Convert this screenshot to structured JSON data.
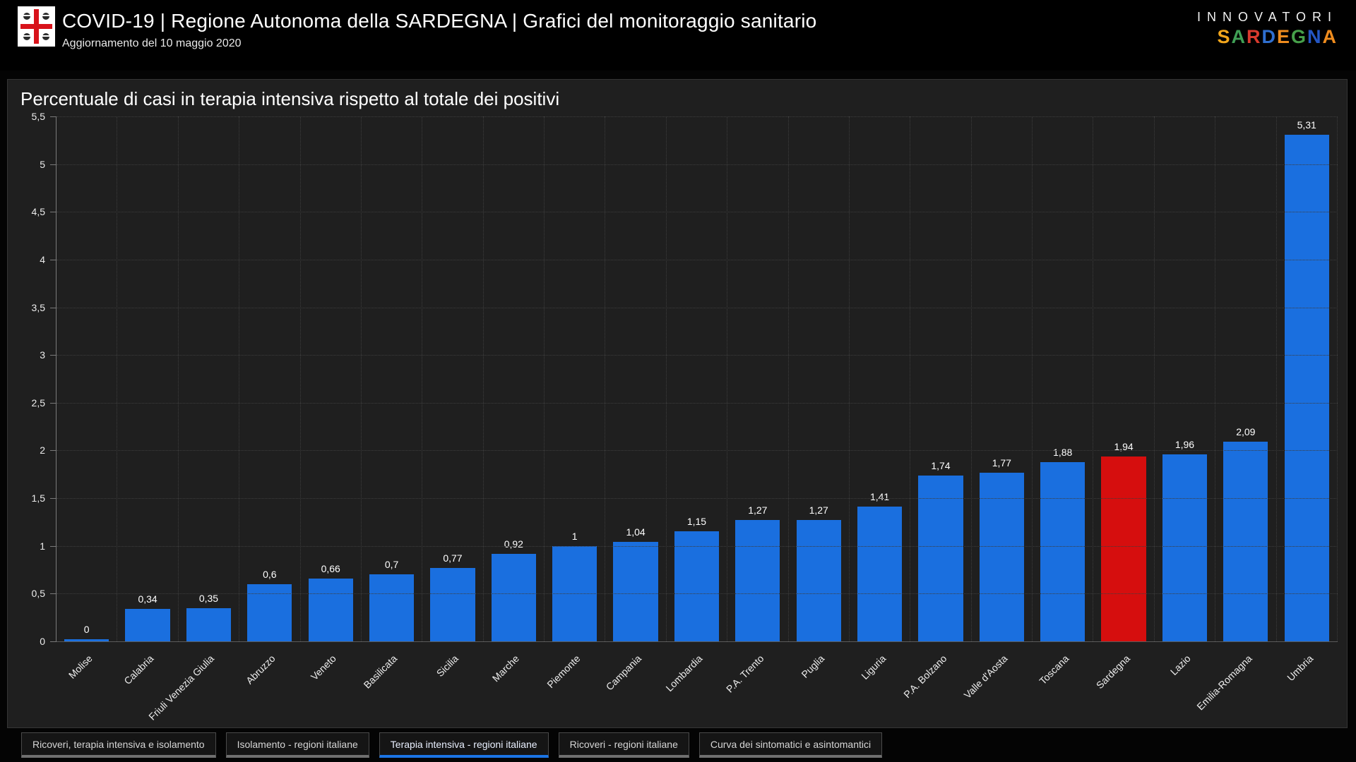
{
  "header": {
    "title": "COVID-19 | Regione Autonoma della SARDEGNA | Grafici del monitoraggio sanitario",
    "subtitle": "Aggiornamento del 10 maggio 2020",
    "logo_icon": "sardinia-flag-icon",
    "brand_top": "INNOVATORI",
    "brand_bottom_letters": [
      {
        "ch": "S",
        "color": "#f2a61c"
      },
      {
        "ch": "A",
        "color": "#3f9f55"
      },
      {
        "ch": "R",
        "color": "#d93a2e"
      },
      {
        "ch": "D",
        "color": "#2f6fd0"
      },
      {
        "ch": "E",
        "color": "#ef8c1e"
      },
      {
        "ch": "G",
        "color": "#46a04a"
      },
      {
        "ch": "N",
        "color": "#2456c4"
      },
      {
        "ch": "A",
        "color": "#ef8c1e"
      }
    ]
  },
  "chart_data": {
    "type": "bar",
    "title": "Percentuale di casi in terapia intensiva rispetto al totale dei positivi",
    "categories": [
      "Molise",
      "Calabria",
      "Friuli Venezia Giulia",
      "Abruzzo",
      "Veneto",
      "Basilicata",
      "Sicilia",
      "Marche",
      "Piemonte",
      "Campania",
      "Lombardia",
      "P.A. Trento",
      "Puglia",
      "Liguria",
      "P.A. Bolzano",
      "Valle d'Aosta",
      "Toscana",
      "Sardegna",
      "Lazio",
      "Emilia-Romagna",
      "Umbria"
    ],
    "values": [
      0,
      0.34,
      0.35,
      0.6,
      0.66,
      0.7,
      0.77,
      0.92,
      1,
      1.04,
      1.15,
      1.27,
      1.27,
      1.41,
      1.74,
      1.77,
      1.88,
      1.94,
      1.96,
      2.09,
      5.31
    ],
    "value_labels": [
      "0",
      "0,34",
      "0,35",
      "0,6",
      "0,66",
      "0,7",
      "0,77",
      "0,92",
      "1",
      "1,04",
      "1,15",
      "1,27",
      "1,27",
      "1,41",
      "1,74",
      "1,77",
      "1,88",
      "1,94",
      "1,96",
      "2,09",
      "5,31"
    ],
    "xlabel": "",
    "ylabel": "",
    "ylim": [
      0,
      5.5
    ],
    "ytick_values": [
      5.5,
      5,
      4.5,
      4,
      3.5,
      3,
      2.5,
      2,
      1.5,
      1,
      0.5,
      0
    ],
    "ytick_labels": [
      "5,5",
      "5",
      "4,5",
      "4",
      "3,5",
      "3",
      "2,5",
      "2",
      "1,5",
      "1",
      "0,5",
      "0"
    ],
    "grid": "dotted horizontal and vertical",
    "legend_position": "none",
    "bar_color": "#1a6fdf",
    "highlight_category": "Sardegna",
    "highlight_color": "#d60e0e"
  },
  "tabs": [
    {
      "label": "Ricoveri, terapia intensiva e isolamento",
      "active": false
    },
    {
      "label": "Isolamento - regioni italiane",
      "active": false
    },
    {
      "label": "Terapia intensiva - regioni italiane",
      "active": true
    },
    {
      "label": "Ricoveri - regioni italiane",
      "active": false
    },
    {
      "label": "Curva dei sintomatici e asintomantici",
      "active": false
    }
  ]
}
